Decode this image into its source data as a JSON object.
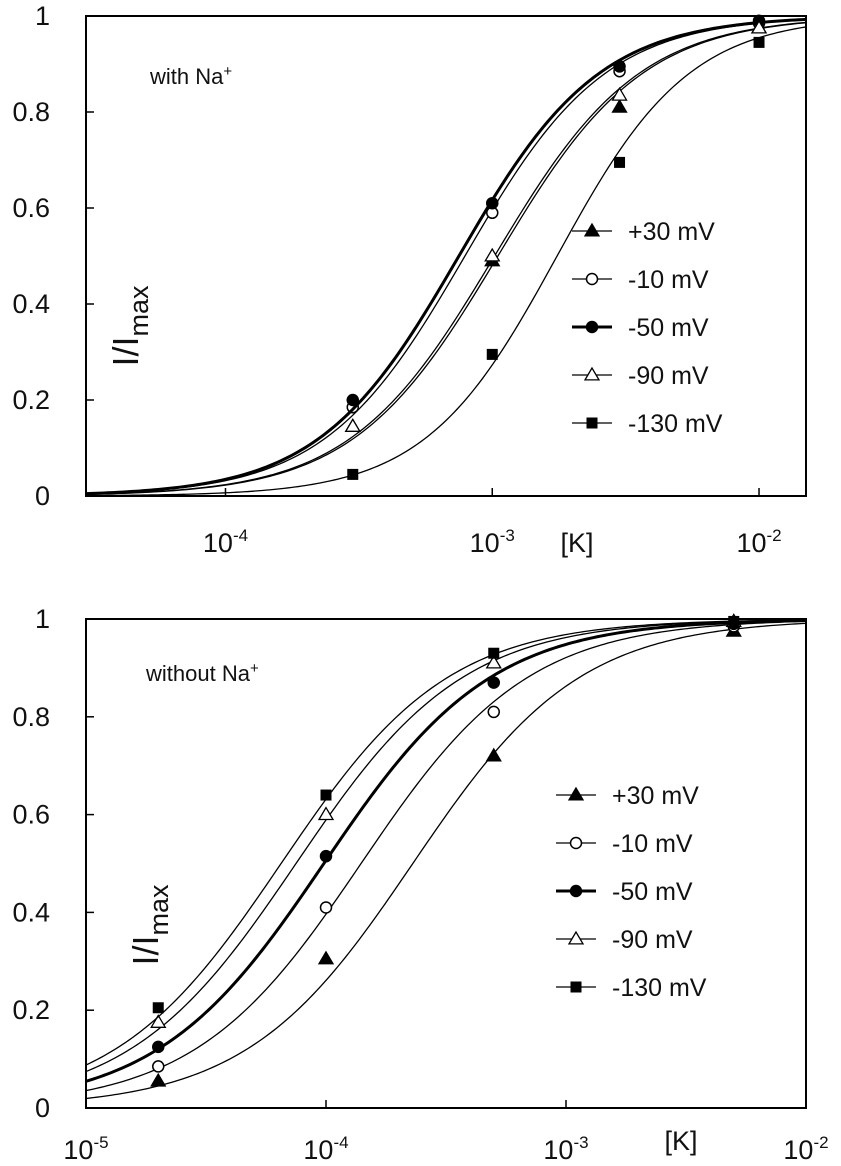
{
  "chart_data": [
    {
      "type": "line",
      "annotation": {
        "text": "with Na",
        "superscript": "+"
      },
      "ylabel": {
        "main": "I/I",
        "sub": "max"
      },
      "xlabel": "[K]",
      "x_scale": "log",
      "xlim": [
        3e-05,
        0.015
      ],
      "ylim": [
        0,
        1
      ],
      "y_ticks": [
        "0",
        "0.2",
        "0.4",
        "0.6",
        "0.8",
        "1"
      ],
      "y_tick_values": [
        0,
        0.2,
        0.4,
        0.6,
        0.8,
        1
      ],
      "x_ticks": [
        {
          "base": "10",
          "exp": "-4",
          "value": 0.0001
        },
        {
          "base": "10",
          "exp": "-3",
          "value": 0.001
        },
        {
          "base": "10",
          "exp": "-2",
          "value": 0.01
        }
      ],
      "x": [
        0.0003,
        0.001,
        0.003,
        0.01
      ],
      "series": [
        {
          "name": "+30 mV",
          "marker": "triangle-filled",
          "values": [
            0.145,
            0.49,
            0.81,
            0.975
          ],
          "ec50": 0.00105,
          "hill": 1.6,
          "line_width": 1.3
        },
        {
          "name": "-10 mV",
          "marker": "circle-open",
          "values": [
            0.185,
            0.59,
            0.885,
            0.985
          ],
          "ec50": 0.00079,
          "hill": 1.65,
          "line_width": 1.3
        },
        {
          "name": "-50 mV",
          "marker": "circle-filled",
          "values": [
            0.2,
            0.61,
            0.895,
            0.99
          ],
          "ec50": 0.00075,
          "hill": 1.65,
          "line_width": 3
        },
        {
          "name": "-90 mV",
          "marker": "triangle-open",
          "values": [
            0.145,
            0.5,
            0.835,
            0.975
          ],
          "ec50": 0.00102,
          "hill": 1.6,
          "line_width": 1.3
        },
        {
          "name": "-130 mV",
          "marker": "square-filled",
          "values": [
            0.045,
            0.295,
            0.695,
            0.945
          ],
          "ec50": 0.00175,
          "hill": 1.75,
          "line_width": 1.3
        }
      ]
    },
    {
      "type": "line",
      "annotation": {
        "text": "without Na",
        "superscript": "+"
      },
      "ylabel": {
        "main": "I/I",
        "sub": "max"
      },
      "xlabel": "[K]",
      "x_scale": "log",
      "xlim": [
        1e-05,
        0.01
      ],
      "ylim": [
        0,
        1
      ],
      "y_ticks": [
        "0",
        "0.2",
        "0.4",
        "0.6",
        "0.8",
        "1"
      ],
      "y_tick_values": [
        0,
        0.2,
        0.4,
        0.6,
        0.8,
        1
      ],
      "x_ticks": [
        {
          "base": "10",
          "exp": "-5",
          "value": 1e-05
        },
        {
          "base": "10",
          "exp": "-4",
          "value": 0.0001
        },
        {
          "base": "10",
          "exp": "-3",
          "value": 0.001
        },
        {
          "base": "10",
          "exp": "-2",
          "value": 0.01
        }
      ],
      "x": [
        2e-05,
        0.0001,
        0.0005,
        0.005
      ],
      "series": [
        {
          "name": "+30 mV",
          "marker": "triangle-filled",
          "values": [
            0.055,
            0.305,
            0.72,
            0.975
          ],
          "ec50": 0.00023,
          "hill": 1.25,
          "line_width": 1.3
        },
        {
          "name": "-10 mV",
          "marker": "circle-open",
          "values": [
            0.085,
            0.41,
            0.81,
            0.985
          ],
          "ec50": 0.00014,
          "hill": 1.25,
          "line_width": 1.3
        },
        {
          "name": "-50 mV",
          "marker": "circle-filled",
          "values": [
            0.125,
            0.515,
            0.87,
            0.99
          ],
          "ec50": 9.8e-05,
          "hill": 1.25,
          "line_width": 3
        },
        {
          "name": "-90 mV",
          "marker": "triangle-open",
          "values": [
            0.175,
            0.6,
            0.91,
            0.995
          ],
          "ec50": 7.5e-05,
          "hill": 1.25,
          "line_width": 1.3
        },
        {
          "name": "-130 mV",
          "marker": "square-filled",
          "values": [
            0.205,
            0.64,
            0.93,
            0.995
          ],
          "ec50": 6.5e-05,
          "hill": 1.25,
          "line_width": 1.3
        }
      ]
    }
  ]
}
